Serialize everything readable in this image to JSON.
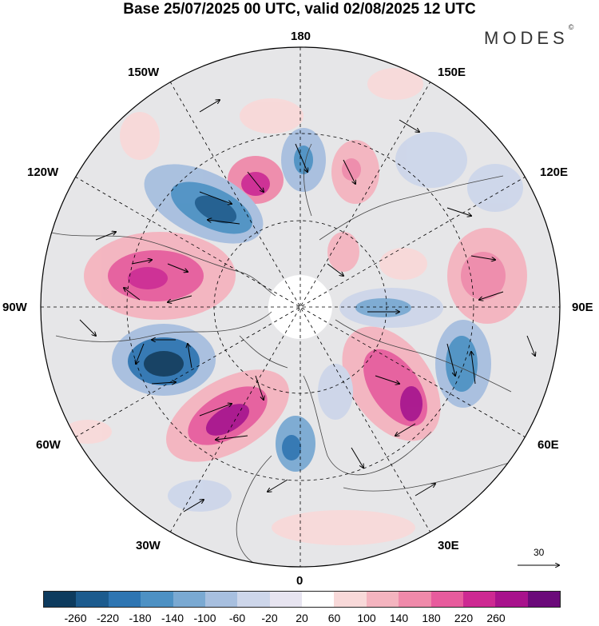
{
  "title": "Base 25/07/2025 00 UTC, valid 02/08/2025 12 UTC",
  "brand": "MODES",
  "brand_mark": "©",
  "longitude_labels": {
    "n180": "180",
    "e150": "150E",
    "e120": "120E",
    "e90": "90E",
    "e60": "60E",
    "e30": "30E",
    "s0": "0",
    "w30": "30W",
    "w60": "60W",
    "w90": "90W",
    "w120": "120W",
    "w150": "150W"
  },
  "vector_reference": "30",
  "colorbar": {
    "colors": [
      "#0d3b5e",
      "#1c5b8e",
      "#2e75b2",
      "#4d91c4",
      "#7aa9d2",
      "#a7bfdf",
      "#cdd6ea",
      "#e7e4f0",
      "#ffffff",
      "#f8d9d9",
      "#f4b4bf",
      "#ef8aaa",
      "#e75c9d",
      "#cd2992",
      "#a8128c",
      "#6b0a7a"
    ],
    "ticks": [
      "-260",
      "-220",
      "-180",
      "-140",
      "-100",
      "-60",
      "-20",
      "20",
      "60",
      "100",
      "140",
      "180",
      "220",
      "260"
    ]
  }
}
